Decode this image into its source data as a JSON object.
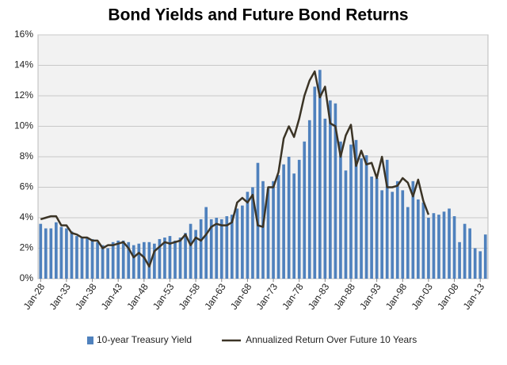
{
  "chart_data": {
    "type": "bar",
    "title": "Bond Yields and Future Bond Returns",
    "categories": [
      "Jan-28",
      null,
      null,
      null,
      null,
      "Jan-33",
      null,
      null,
      null,
      null,
      "Jan-38",
      null,
      null,
      null,
      null,
      "Jan-43",
      null,
      null,
      null,
      null,
      "Jan-48",
      null,
      null,
      null,
      null,
      "Jan-53",
      null,
      null,
      null,
      null,
      "Jan-58",
      null,
      null,
      null,
      null,
      "Jan-63",
      null,
      null,
      null,
      null,
      "Jan-68",
      null,
      null,
      null,
      null,
      "Jan-73",
      null,
      null,
      null,
      null,
      "Jan-78",
      null,
      null,
      null,
      null,
      "Jan-83",
      null,
      null,
      null,
      null,
      "Jan-88",
      null,
      null,
      null,
      null,
      "Jan-93",
      null,
      null,
      null,
      null,
      "Jan-98",
      null,
      null,
      null,
      null,
      "Jan-03",
      null,
      null,
      null,
      null,
      "Jan-08",
      null,
      null,
      null,
      null,
      "Jan-13",
      null
    ],
    "series": [
      {
        "name": "10-year Treasury Yield",
        "type": "bar",
        "color": "#4f81bd",
        "values": [
          3.6,
          3.3,
          3.3,
          3.7,
          3.4,
          3.3,
          3.1,
          2.8,
          2.7,
          2.7,
          2.6,
          2.4,
          2.2,
          2.0,
          2.4,
          2.5,
          2.5,
          2.4,
          2.2,
          2.3,
          2.4,
          2.4,
          2.3,
          2.6,
          2.7,
          2.8,
          2.5,
          2.7,
          3.0,
          3.6,
          3.2,
          3.9,
          4.7,
          3.9,
          4.0,
          3.9,
          4.1,
          4.2,
          4.6,
          4.8,
          5.7,
          6.0,
          7.6,
          6.4,
          5.9,
          6.4,
          6.8,
          7.5,
          8.0,
          6.9,
          7.8,
          9.0,
          10.4,
          12.6,
          13.7,
          10.5,
          11.7,
          11.5,
          9.0,
          7.1,
          8.8,
          9.1,
          7.9,
          8.1,
          6.7,
          6.6,
          5.8,
          7.8,
          5.7,
          6.4,
          5.8,
          4.7,
          6.4,
          5.2,
          5.0,
          4.0,
          4.3,
          4.2,
          4.4,
          4.6,
          4.1,
          2.4,
          3.6,
          3.3,
          2.0,
          1.8,
          2.9
        ]
      },
      {
        "name": "Annualized Return Over Future 10 Years",
        "type": "line",
        "color": "#3b3426",
        "values": [
          3.9,
          4.0,
          4.1,
          4.1,
          3.5,
          3.5,
          3.0,
          2.9,
          2.7,
          2.7,
          2.5,
          2.5,
          2.0,
          2.2,
          2.2,
          2.3,
          2.4,
          2.0,
          1.4,
          1.7,
          1.4,
          0.8,
          1.8,
          2.1,
          2.4,
          2.3,
          2.4,
          2.5,
          2.9,
          2.2,
          2.7,
          2.5,
          2.9,
          3.4,
          3.6,
          3.5,
          3.5,
          3.7,
          5.0,
          5.3,
          5.0,
          5.5,
          3.5,
          3.4,
          6.0,
          6.0,
          7.0,
          9.2,
          10.0,
          9.3,
          10.5,
          12.0,
          13.0,
          13.6,
          11.9,
          12.6,
          10.2,
          10.0,
          8.0,
          9.4,
          10.1,
          7.4,
          8.4,
          7.5,
          7.6,
          6.6,
          8.0,
          6.0,
          6.0,
          6.1,
          6.6,
          6.3,
          5.4,
          6.5,
          5.1,
          4.2,
          null,
          null,
          null,
          null,
          null,
          null,
          null,
          null,
          null,
          null,
          null
        ]
      }
    ],
    "ylim": [
      0,
      16
    ],
    "yticks": [
      {
        "value": 0,
        "label": "0%"
      },
      {
        "value": 2,
        "label": "2%"
      },
      {
        "value": 4,
        "label": "4%"
      },
      {
        "value": 6,
        "label": "6%"
      },
      {
        "value": 8,
        "label": "8%"
      },
      {
        "value": 10,
        "label": "10%"
      },
      {
        "value": 12,
        "label": "12%"
      },
      {
        "value": 14,
        "label": "14%"
      },
      {
        "value": 16,
        "label": "16%"
      }
    ],
    "grid": true,
    "legend": "bottom"
  }
}
